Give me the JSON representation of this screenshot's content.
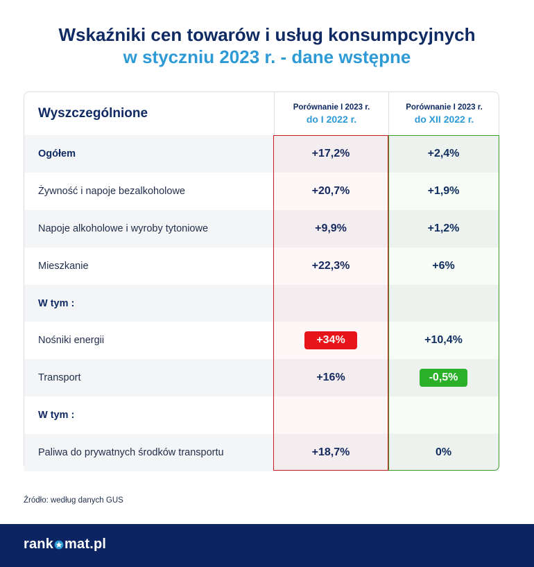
{
  "title": {
    "line1": "Wskaźniki cen towarów i usług konsumpcyjnych",
    "line2": "w styczniu 2023 r. - dane wstępne"
  },
  "table": {
    "header": {
      "col0": "Wyszczególnione",
      "col1_line1": "Porównanie I 2023 r.",
      "col1_line2": "do I 2022 r.",
      "col2_line1": "Porównanie I 2023 r.",
      "col2_line2": "do XII 2022 r."
    },
    "rows": [
      {
        "label": "Ogółem",
        "v1": "+17,2%",
        "v2": "+2,4%"
      },
      {
        "label": "Żywność i napoje bezalkoholowe",
        "v1": "+20,7%",
        "v2": "+1,9%"
      },
      {
        "label": "Napoje alkoholowe i wyroby tytoniowe",
        "v1": "+9,9%",
        "v2": "+1,2%"
      },
      {
        "label": "Mieszkanie",
        "v1": "+22,3%",
        "v2": "+6%"
      },
      {
        "label": "W tym :",
        "v1": "",
        "v2": ""
      },
      {
        "label": "Nośniki energii",
        "v1": "+34%",
        "v2": "+10,4%"
      },
      {
        "label": "Transport",
        "v1": "+16%",
        "v2": "-0,5%"
      },
      {
        "label": "W tym :",
        "v1": "",
        "v2": ""
      },
      {
        "label": "Paliwa do prywatnych środków transportu",
        "v1": "+18,7%",
        "v2": "0%"
      }
    ],
    "colors": {
      "highlight_red": "#e8141a",
      "highlight_green": "#2bb12a"
    }
  },
  "source": "Źródło: według danych GUS",
  "footer": {
    "logo_left": "rank",
    "logo_right": "mat.pl",
    "logo_icon": "star-icon"
  }
}
